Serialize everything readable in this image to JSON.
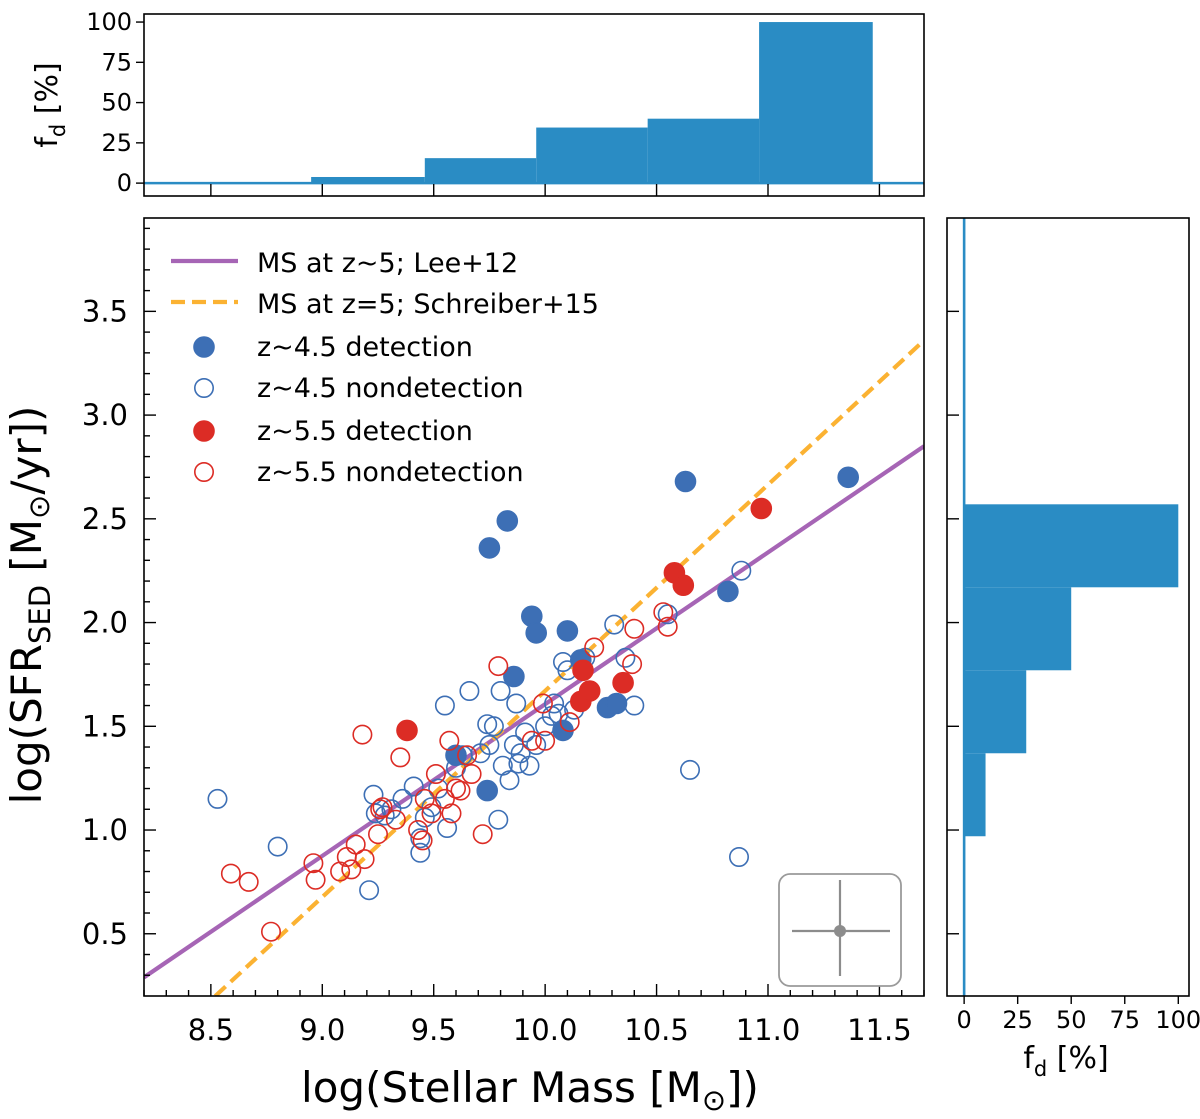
{
  "chart_data": [
    {
      "panel": "main-scatter",
      "type": "scatter",
      "xlabel_main": "log(Stellar Mass  [M",
      "xlabel_unit": "]",
      "xlabel_close": ")",
      "ylabel_main": "log(SFR",
      "ylabel_sub": "SED",
      "ylabel_unit": " [M",
      "ylabel_unit2": "/yr])",
      "xlim": [
        8.2,
        11.7
      ],
      "ylim": [
        0.2,
        3.95
      ],
      "xticks": [
        "8.5",
        "9.0",
        "9.5",
        "10.0",
        "10.5",
        "11.0",
        "11.5"
      ],
      "xtick_values": [
        8.5,
        9.0,
        9.5,
        10.0,
        10.5,
        11.0,
        11.5
      ],
      "yticks": [
        "0.5",
        "1.0",
        "1.5",
        "2.0",
        "2.5",
        "3.0",
        "3.5"
      ],
      "ytick_values": [
        0.5,
        1.0,
        1.5,
        2.0,
        2.5,
        3.0,
        3.5
      ],
      "lines": [
        {
          "name": "MS at z~5; Lee+12",
          "color": "#a665b5",
          "style": "solid",
          "x": [
            8.2,
            11.7
          ],
          "y": [
            0.29,
            2.85
          ]
        },
        {
          "name": "MS at z=5; Schreiber+15",
          "color": "#fbb232",
          "style": "dashed",
          "x": [
            8.52,
            11.7
          ],
          "y": [
            0.2,
            3.36
          ]
        }
      ],
      "legend_position": "top-left",
      "legend": [
        {
          "label": "MS at z~5; Lee+12",
          "kind": "line",
          "color": "#a665b5",
          "dashed": false
        },
        {
          "label": "MS at z=5; Schreiber+15",
          "kind": "line",
          "color": "#fbb232",
          "dashed": true
        },
        {
          "label": "z~4.5 detection",
          "kind": "marker",
          "color": "#3d6fb5",
          "filled": true
        },
        {
          "label": "z~4.5 nondetection",
          "kind": "marker",
          "color": "#3d6fb5",
          "filled": false
        },
        {
          "label": "z~5.5 detection",
          "kind": "marker",
          "color": "#dc2c25",
          "filled": true
        },
        {
          "label": "z~5.5 nondetection",
          "kind": "marker",
          "color": "#dc2c25",
          "filled": false
        }
      ],
      "series": [
        {
          "name": "z~4.5 detection",
          "color": "#3d6fb5",
          "filled": true,
          "points": [
            [
              9.6,
              1.36
            ],
            [
              9.74,
              1.19
            ],
            [
              9.75,
              2.36
            ],
            [
              9.83,
              2.49
            ],
            [
              9.86,
              1.74
            ],
            [
              9.94,
              2.03
            ],
            [
              9.96,
              1.95
            ],
            [
              10.08,
              1.48
            ],
            [
              10.1,
              1.96
            ],
            [
              10.16,
              1.82
            ],
            [
              10.28,
              1.59
            ],
            [
              10.32,
              1.61
            ],
            [
              10.63,
              2.68
            ],
            [
              10.82,
              2.15
            ],
            [
              11.36,
              2.7
            ]
          ]
        },
        {
          "name": "z~4.5 nondetection",
          "color": "#3d6fb5",
          "filled": false,
          "points": [
            [
              8.53,
              1.15
            ],
            [
              8.8,
              0.92
            ],
            [
              9.21,
              0.71
            ],
            [
              9.23,
              1.17
            ],
            [
              9.24,
              1.08
            ],
            [
              9.28,
              1.07
            ],
            [
              9.31,
              1.1
            ],
            [
              9.36,
              1.15
            ],
            [
              9.41,
              1.21
            ],
            [
              9.44,
              0.89
            ],
            [
              9.44,
              0.96
            ],
            [
              9.46,
              1.06
            ],
            [
              9.49,
              1.11
            ],
            [
              9.52,
              1.2
            ],
            [
              9.55,
              1.6
            ],
            [
              9.56,
              1.01
            ],
            [
              9.6,
              1.3
            ],
            [
              9.63,
              1.36
            ],
            [
              9.66,
              1.67
            ],
            [
              9.71,
              1.37
            ],
            [
              9.74,
              1.51
            ],
            [
              9.75,
              1.41
            ],
            [
              9.77,
              1.5
            ],
            [
              9.79,
              1.05
            ],
            [
              9.8,
              1.67
            ],
            [
              9.81,
              1.31
            ],
            [
              9.84,
              1.24
            ],
            [
              9.86,
              1.41
            ],
            [
              9.87,
              1.61
            ],
            [
              9.88,
              1.32
            ],
            [
              9.89,
              1.37
            ],
            [
              9.91,
              1.47
            ],
            [
              9.93,
              1.31
            ],
            [
              9.96,
              1.41
            ],
            [
              10.0,
              1.5
            ],
            [
              10.03,
              1.55
            ],
            [
              10.04,
              1.61
            ],
            [
              10.06,
              1.56
            ],
            [
              10.08,
              1.81
            ],
            [
              10.1,
              1.77
            ],
            [
              10.13,
              1.58
            ],
            [
              10.18,
              1.83
            ],
            [
              10.31,
              1.99
            ],
            [
              10.36,
              1.83
            ],
            [
              10.4,
              1.6
            ],
            [
              10.55,
              2.04
            ],
            [
              10.65,
              1.29
            ],
            [
              10.87,
              0.87
            ],
            [
              10.88,
              2.25
            ]
          ]
        },
        {
          "name": "z~5.5 detection",
          "color": "#dc2c25",
          "filled": true,
          "points": [
            [
              9.38,
              1.48
            ],
            [
              10.16,
              1.62
            ],
            [
              10.17,
              1.77
            ],
            [
              10.2,
              1.67
            ],
            [
              10.35,
              1.71
            ],
            [
              10.58,
              2.24
            ],
            [
              10.62,
              2.18
            ],
            [
              10.97,
              2.55
            ]
          ]
        },
        {
          "name": "z~5.5 nondetection",
          "color": "#dc2c25",
          "filled": false,
          "points": [
            [
              8.59,
              0.79
            ],
            [
              8.67,
              0.75
            ],
            [
              8.77,
              0.51
            ],
            [
              8.96,
              0.84
            ],
            [
              8.97,
              0.76
            ],
            [
              9.08,
              0.8
            ],
            [
              9.11,
              0.87
            ],
            [
              9.13,
              0.81
            ],
            [
              9.15,
              0.93
            ],
            [
              9.18,
              1.46
            ],
            [
              9.19,
              0.86
            ],
            [
              9.25,
              0.98
            ],
            [
              9.26,
              1.1
            ],
            [
              9.27,
              1.11
            ],
            [
              9.33,
              1.05
            ],
            [
              9.35,
              1.35
            ],
            [
              9.43,
              1.0
            ],
            [
              9.45,
              0.95
            ],
            [
              9.46,
              1.15
            ],
            [
              9.49,
              1.08
            ],
            [
              9.51,
              1.27
            ],
            [
              9.55,
              1.15
            ],
            [
              9.57,
              1.43
            ],
            [
              9.58,
              1.08
            ],
            [
              9.6,
              1.2
            ],
            [
              9.62,
              1.19
            ],
            [
              9.65,
              1.36
            ],
            [
              9.67,
              1.27
            ],
            [
              9.72,
              0.98
            ],
            [
              9.79,
              1.79
            ],
            [
              9.94,
              1.43
            ],
            [
              9.99,
              1.61
            ],
            [
              10.0,
              1.43
            ],
            [
              10.11,
              1.52
            ],
            [
              10.22,
              1.88
            ],
            [
              10.39,
              1.8
            ],
            [
              10.4,
              1.97
            ],
            [
              10.53,
              2.05
            ],
            [
              10.55,
              1.98
            ]
          ]
        }
      ],
      "error_bar_inset": {
        "color": "#8c8c8c"
      }
    },
    {
      "panel": "top-histogram",
      "type": "bar",
      "ylabel_main": "f",
      "ylabel_sub": "d",
      "ylabel_unit": " [%]",
      "xlim": [
        8.2,
        11.7
      ],
      "ylim": [
        -8,
        105
      ],
      "yticks": [
        "0",
        "25",
        "50",
        "75",
        "100"
      ],
      "ytick_values": [
        0,
        25,
        50,
        75,
        100
      ],
      "bins": [
        [
          8.2,
          8.95,
          0
        ],
        [
          8.95,
          9.46,
          3.8
        ],
        [
          9.46,
          9.96,
          15.5
        ],
        [
          9.96,
          10.46,
          34.5
        ],
        [
          10.46,
          10.96,
          40
        ],
        [
          10.96,
          11.47,
          100
        ],
        [
          11.47,
          11.7,
          0
        ]
      ],
      "color": "#2a8cc4"
    },
    {
      "panel": "right-histogram",
      "type": "bar",
      "orientation": "horizontal",
      "xlabel_main": "f",
      "xlabel_sub": "d",
      "xlabel_unit": " [%]",
      "xlim": [
        -8,
        105
      ],
      "ylim": [
        0.2,
        3.95
      ],
      "xticks": [
        "0",
        "25",
        "50",
        "75",
        "100"
      ],
      "xtick_values": [
        0,
        25,
        50,
        75,
        100
      ],
      "bins": [
        [
          0.2,
          0.97,
          0
        ],
        [
          0.97,
          1.37,
          10
        ],
        [
          1.37,
          1.77,
          29
        ],
        [
          1.77,
          2.17,
          50
        ],
        [
          2.17,
          2.57,
          100
        ],
        [
          2.57,
          3.95,
          0
        ]
      ],
      "color": "#2a8cc4"
    }
  ]
}
